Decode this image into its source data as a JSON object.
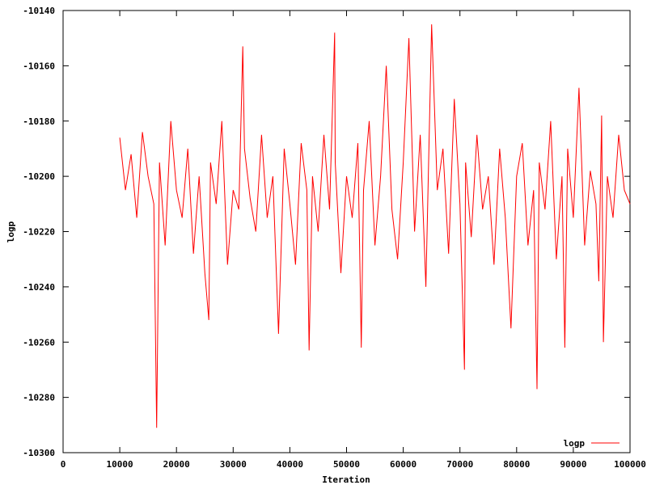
{
  "chart_data": {
    "type": "line",
    "title": "",
    "xlabel": "Iteration",
    "ylabel": "logp",
    "xlim": [
      0,
      100000
    ],
    "ylim": [
      -10300,
      -10140
    ],
    "x_ticks": [
      0,
      10000,
      20000,
      30000,
      40000,
      50000,
      60000,
      70000,
      80000,
      90000,
      100000
    ],
    "x_tick_labels": [
      "0",
      "10000",
      "20000",
      "30000",
      "40000",
      "50000",
      "60000",
      "70000",
      "80000",
      "90000",
      "100000"
    ],
    "y_ticks": [
      -10300,
      -10280,
      -10260,
      -10240,
      -10220,
      -10200,
      -10180,
      -10160,
      -10140
    ],
    "y_tick_labels": [
      "-10300",
      "-10280",
      "-10260",
      "-10240",
      "-10220",
      "-10200",
      "-10180",
      "-10160",
      "-10140"
    ],
    "grid": false,
    "legend_position": "bottom-right",
    "series": [
      {
        "name": "logp",
        "color": "#ff0000",
        "x": [
          10000,
          11000,
          12000,
          13000,
          14000,
          15000,
          16000,
          16500,
          17000,
          18000,
          19000,
          20000,
          21000,
          22000,
          23000,
          24000,
          25000,
          25700,
          26000,
          27000,
          28000,
          29000,
          30000,
          31000,
          31700,
          32000,
          33000,
          34000,
          35000,
          36000,
          37000,
          38000,
          39000,
          40000,
          41000,
          42000,
          43000,
          43400,
          44000,
          45000,
          46000,
          47000,
          47900,
          48000,
          49000,
          50000,
          51000,
          52000,
          52600,
          53000,
          54000,
          55000,
          56000,
          57000,
          58000,
          59000,
          60000,
          61000,
          62000,
          63000,
          64000,
          65000,
          66000,
          67000,
          68000,
          69000,
          70000,
          70800,
          71000,
          72000,
          73000,
          74000,
          75000,
          76000,
          77000,
          78000,
          79000,
          80000,
          81000,
          82000,
          83000,
          83600,
          84000,
          85000,
          86000,
          87000,
          88000,
          88500,
          89000,
          90000,
          91000,
          92000,
          93000,
          94000,
          94500,
          95000,
          95300,
          96000,
          97000,
          98000,
          99000,
          100000
        ],
        "y": [
          -10186,
          -10205,
          -10192,
          -10215,
          -10184,
          -10200,
          -10210,
          -10291,
          -10195,
          -10225,
          -10180,
          -10205,
          -10215,
          -10190,
          -10228,
          -10200,
          -10235,
          -10252,
          -10195,
          -10210,
          -10180,
          -10232,
          -10205,
          -10212,
          -10153,
          -10190,
          -10208,
          -10220,
          -10185,
          -10215,
          -10200,
          -10257,
          -10190,
          -10210,
          -10232,
          -10188,
          -10205,
          -10263,
          -10200,
          -10220,
          -10185,
          -10212,
          -10148,
          -10195,
          -10235,
          -10200,
          -10215,
          -10188,
          -10262,
          -10205,
          -10180,
          -10225,
          -10200,
          -10160,
          -10212,
          -10230,
          -10195,
          -10150,
          -10220,
          -10185,
          -10240,
          -10145,
          -10205,
          -10190,
          -10228,
          -10172,
          -10210,
          -10270,
          -10195,
          -10222,
          -10185,
          -10212,
          -10200,
          -10232,
          -10190,
          -10215,
          -10255,
          -10200,
          -10188,
          -10225,
          -10205,
          -10277,
          -10195,
          -10212,
          -10180,
          -10230,
          -10200,
          -10262,
          -10190,
          -10215,
          -10168,
          -10225,
          -10198,
          -10210,
          -10238,
          -10178,
          -10260,
          -10200,
          -10215,
          -10185,
          -10205,
          -10210
        ]
      }
    ]
  }
}
